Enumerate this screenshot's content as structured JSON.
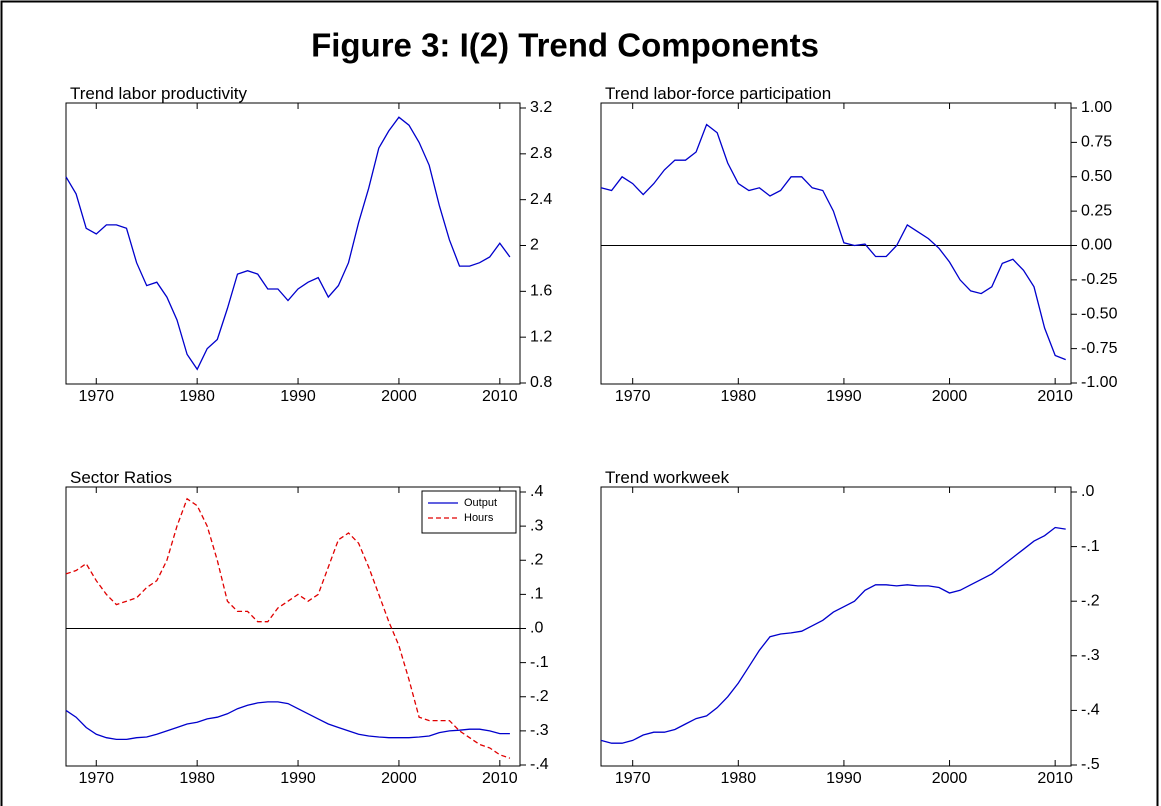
{
  "title": "Figure 3:  I(2) Trend Components",
  "chart_data": [
    {
      "type": "line",
      "title": "Trend labor productivity",
      "color": "#0000cc",
      "x": [
        1967,
        1968,
        1969,
        1970,
        1971,
        1972,
        1973,
        1974,
        1975,
        1976,
        1977,
        1978,
        1979,
        1980,
        1981,
        1982,
        1983,
        1984,
        1985,
        1986,
        1987,
        1988,
        1989,
        1990,
        1991,
        1992,
        1993,
        1994,
        1995,
        1996,
        1997,
        1998,
        1999,
        2000,
        2001,
        2002,
        2003,
        2004,
        2005,
        2006,
        2007,
        2008,
        2009,
        2010,
        2011
      ],
      "values": [
        2.6,
        2.45,
        2.15,
        2.1,
        2.18,
        2.18,
        2.15,
        1.85,
        1.65,
        1.68,
        1.55,
        1.35,
        1.05,
        0.92,
        1.1,
        1.18,
        1.45,
        1.75,
        1.78,
        1.75,
        1.62,
        1.62,
        1.52,
        1.62,
        1.68,
        1.72,
        1.55,
        1.65,
        1.85,
        2.2,
        2.5,
        2.85,
        3.0,
        3.12,
        3.05,
        2.9,
        2.7,
        2.35,
        2.05,
        1.82,
        1.82,
        1.85,
        1.9,
        2.02,
        1.9
      ],
      "xlim": [
        1967,
        2012
      ],
      "xticks": [
        1970,
        1980,
        1990,
        2000,
        2010
      ],
      "ylim": [
        0.8,
        3.2
      ],
      "yticks": [
        0.8,
        1.2,
        1.6,
        2.0,
        2.4,
        2.8,
        3.2
      ],
      "zero_line": false
    },
    {
      "type": "line",
      "title": "Trend labor-force participation",
      "color": "#0000cc",
      "x": [
        1967,
        1968,
        1969,
        1970,
        1971,
        1972,
        1973,
        1974,
        1975,
        1976,
        1977,
        1978,
        1979,
        1980,
        1981,
        1982,
        1983,
        1984,
        1985,
        1986,
        1987,
        1988,
        1989,
        1990,
        1991,
        1992,
        1993,
        1994,
        1995,
        1996,
        1997,
        1998,
        1999,
        2000,
        2001,
        2002,
        2003,
        2004,
        2005,
        2006,
        2007,
        2008,
        2009,
        2010,
        2011
      ],
      "values": [
        0.42,
        0.4,
        0.5,
        0.45,
        0.37,
        0.45,
        0.55,
        0.62,
        0.62,
        0.68,
        0.88,
        0.82,
        0.6,
        0.45,
        0.4,
        0.42,
        0.36,
        0.4,
        0.5,
        0.5,
        0.42,
        0.4,
        0.25,
        0.02,
        0.0,
        0.01,
        -0.08,
        -0.08,
        0.0,
        0.15,
        0.1,
        0.05,
        -0.02,
        -0.12,
        -0.25,
        -0.33,
        -0.35,
        -0.3,
        -0.13,
        -0.1,
        -0.18,
        -0.3,
        -0.6,
        -0.8,
        -0.83
      ],
      "xlim": [
        1967,
        2011.5
      ],
      "xticks": [
        1970,
        1980,
        1990,
        2000,
        2010
      ],
      "ylim": [
        -1,
        1
      ],
      "yticks": [
        {
          "value": -1,
          "label": "-1.00"
        },
        {
          "value": -0.75,
          "label": "-0.75"
        },
        {
          "value": -0.5,
          "label": "-0.50"
        },
        {
          "value": -0.25,
          "label": "-0.25"
        },
        {
          "value": 0,
          "label": "0.00"
        },
        {
          "value": 0.25,
          "label": "0.25"
        },
        {
          "value": 0.5,
          "label": "0.50"
        },
        {
          "value": 0.75,
          "label": "0.75"
        },
        {
          "value": 1,
          "label": "1.00"
        }
      ],
      "zero_line": true
    },
    {
      "type": "line",
      "title": "Sector Ratios",
      "legend": "upper right",
      "x": [
        1967,
        1968,
        1969,
        1970,
        1971,
        1972,
        1973,
        1974,
        1975,
        1976,
        1977,
        1978,
        1979,
        1980,
        1981,
        1982,
        1983,
        1984,
        1985,
        1986,
        1987,
        1988,
        1989,
        1990,
        1991,
        1992,
        1993,
        1994,
        1995,
        1996,
        1997,
        1998,
        1999,
        2000,
        2001,
        2002,
        2003,
        2004,
        2005,
        2006,
        2007,
        2008,
        2009,
        2010,
        2011
      ],
      "series": [
        {
          "name": "Output",
          "color": "#0000cc",
          "style": "solid",
          "values": [
            -0.24,
            -0.26,
            -0.29,
            -0.31,
            -0.32,
            -0.325,
            -0.325,
            -0.32,
            -0.318,
            -0.31,
            -0.3,
            -0.29,
            -0.28,
            -0.275,
            -0.265,
            -0.26,
            -0.25,
            -0.235,
            -0.225,
            -0.218,
            -0.215,
            -0.215,
            -0.22,
            -0.235,
            -0.25,
            -0.265,
            -0.28,
            -0.29,
            -0.3,
            -0.31,
            -0.315,
            -0.318,
            -0.32,
            -0.32,
            -0.32,
            -0.318,
            -0.315,
            -0.305,
            -0.3,
            -0.298,
            -0.295,
            -0.295,
            -0.3,
            -0.308,
            -0.308
          ]
        },
        {
          "name": "Hours",
          "color": "#e00000",
          "style": "dashed",
          "values": [
            0.16,
            0.17,
            0.19,
            0.14,
            0.1,
            0.07,
            0.08,
            0.09,
            0.12,
            0.14,
            0.2,
            0.3,
            0.38,
            0.36,
            0.3,
            0.2,
            0.08,
            0.05,
            0.05,
            0.02,
            0.02,
            0.06,
            0.08,
            0.1,
            0.08,
            0.1,
            0.18,
            0.26,
            0.28,
            0.25,
            0.18,
            0.1,
            0.02,
            -0.05,
            -0.15,
            -0.26,
            -0.27,
            -0.27,
            -0.27,
            -0.3,
            -0.32,
            -0.34,
            -0.35,
            -0.37,
            -0.38
          ]
        }
      ],
      "xlim": [
        1967,
        2012
      ],
      "xticks": [
        1970,
        1980,
        1990,
        2000,
        2010
      ],
      "ylim": [
        -0.4,
        0.4
      ],
      "yticks": [
        {
          "value": -0.4,
          "label": "-.4"
        },
        {
          "value": -0.3,
          "label": "-.3"
        },
        {
          "value": -0.2,
          "label": "-.2"
        },
        {
          "value": -0.1,
          "label": "-.1"
        },
        {
          "value": 0,
          "label": ".0"
        },
        {
          "value": 0.1,
          "label": ".1"
        },
        {
          "value": 0.2,
          "label": ".2"
        },
        {
          "value": 0.3,
          "label": ".3"
        },
        {
          "value": 0.4,
          "label": ".4"
        }
      ],
      "zero_line": true
    },
    {
      "type": "line",
      "title": "Trend workweek",
      "color": "#0000cc",
      "x": [
        1967,
        1968,
        1969,
        1970,
        1971,
        1972,
        1973,
        1974,
        1975,
        1976,
        1977,
        1978,
        1979,
        1980,
        1981,
        1982,
        1983,
        1984,
        1985,
        1986,
        1987,
        1988,
        1989,
        1990,
        1991,
        1992,
        1993,
        1994,
        1995,
        1996,
        1997,
        1998,
        1999,
        2000,
        2001,
        2002,
        2003,
        2004,
        2005,
        2006,
        2007,
        2008,
        2009,
        2010,
        2011
      ],
      "values": [
        -0.455,
        -0.46,
        -0.46,
        -0.455,
        -0.445,
        -0.44,
        -0.44,
        -0.435,
        -0.425,
        -0.415,
        -0.41,
        -0.395,
        -0.375,
        -0.35,
        -0.32,
        -0.29,
        -0.265,
        -0.26,
        -0.258,
        -0.255,
        -0.245,
        -0.235,
        -0.22,
        -0.21,
        -0.2,
        -0.18,
        -0.17,
        -0.17,
        -0.172,
        -0.17,
        -0.172,
        -0.172,
        -0.175,
        -0.185,
        -0.18,
        -0.17,
        -0.16,
        -0.15,
        -0.135,
        -0.12,
        -0.105,
        -0.09,
        -0.08,
        -0.065,
        -0.068
      ],
      "xlim": [
        1967,
        2011.5
      ],
      "xticks": [
        1970,
        1980,
        1990,
        2000,
        2010
      ],
      "ylim": [
        -0.5,
        0
      ],
      "yticks": [
        {
          "value": -0.5,
          "label": "-.5"
        },
        {
          "value": -0.4,
          "label": "-.4"
        },
        {
          "value": -0.3,
          "label": "-.3"
        },
        {
          "value": -0.2,
          "label": "-.2"
        },
        {
          "value": -0.1,
          "label": "-.1"
        },
        {
          "value": 0,
          "label": ".0"
        }
      ],
      "zero_line": false
    }
  ]
}
